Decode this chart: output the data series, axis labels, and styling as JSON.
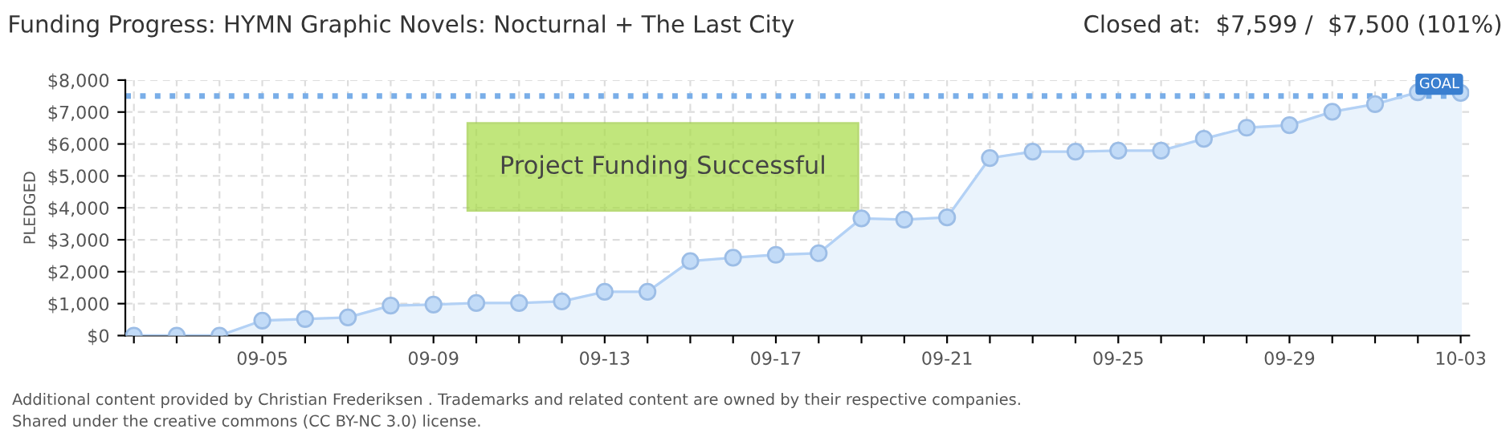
{
  "chart_data": {
    "type": "area",
    "title": "Funding Progress: HYMN Graphic Novels: Nocturnal + The Last City",
    "subtitle": "Closed at:  $7,599 /  $7,500 (101%)",
    "ylabel": "PLEDGED",
    "categories": [
      null,
      null,
      null,
      "09-05",
      null,
      null,
      null,
      "09-09",
      null,
      null,
      null,
      "09-13",
      null,
      null,
      null,
      "09-17",
      null,
      null,
      null,
      "09-21",
      null,
      null,
      null,
      "09-25",
      null,
      null,
      null,
      "09-29",
      null,
      null,
      null,
      "10-03"
    ],
    "series": [
      {
        "color": "#b3d1f5",
        "values": [
          0,
          0,
          0,
          470,
          520,
          570,
          940,
          970,
          1020,
          1020,
          1070,
          1370,
          1370,
          2330,
          2440,
          2530,
          2580,
          3670,
          3630,
          3700,
          5560,
          5760,
          5760,
          5790,
          5790,
          6160,
          6510,
          6590,
          7010,
          7250,
          7620,
          7600
        ]
      }
    ],
    "ylim": [
      0,
      8000
    ],
    "yticks": [
      {
        "value": 0,
        "label": "$0"
      },
      {
        "value": 1000,
        "label": "$1,000"
      },
      {
        "value": 2000,
        "label": "$2,000"
      },
      {
        "value": 3000,
        "label": "$3,000"
      },
      {
        "value": 4000,
        "label": "$4,000"
      },
      {
        "value": 5000,
        "label": "$5,000"
      },
      {
        "value": 6000,
        "label": "$6,000"
      },
      {
        "value": 7000,
        "label": "$7,000"
      },
      {
        "value": 8000,
        "label": "$8,000"
      }
    ],
    "ref_lines": [
      {
        "axis": "y",
        "value": 7500,
        "label": "GOAL",
        "color": "#7aaee8",
        "line_style": "dotted"
      }
    ],
    "annotations": [
      "Project Funding Successful",
      "Additional content provided by Christian Frederiksen . Trademarks and related content are owned by their respective companies.",
      "Shared under the creative commons (CC BY-NC 3.0) license."
    ],
    "grid": true,
    "marker": "circle"
  }
}
